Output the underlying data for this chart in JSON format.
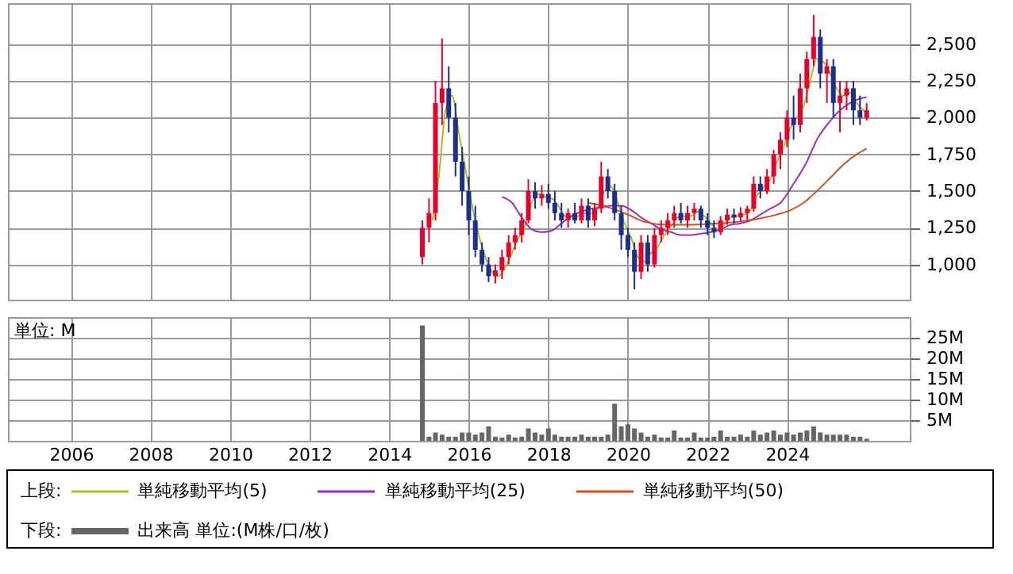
{
  "chart_data": [
    {
      "type": "candlestick",
      "legend_title": "上段:",
      "legend": "bottom",
      "grid": true,
      "tick_labels": "y",
      "xlim": [
        "2004-06",
        "2027-02"
      ],
      "xticks": [
        {
          "value": "2006",
          "label": null
        },
        {
          "value": "2008",
          "label": null
        },
        {
          "value": "2010",
          "label": null
        },
        {
          "value": "2012",
          "label": null
        },
        {
          "value": "2014",
          "label": null
        },
        {
          "value": "2016",
          "label": null
        },
        {
          "value": "2018",
          "label": null
        },
        {
          "value": "2020",
          "label": null
        },
        {
          "value": "2022",
          "label": null
        },
        {
          "value": "2024",
          "label": null
        }
      ],
      "ylim": [
        760,
        2780
      ],
      "yticks": [
        {
          "value": 1000,
          "label": "1,000"
        },
        {
          "value": 1250,
          "label": "1,250"
        },
        {
          "value": 1500,
          "label": "1,500"
        },
        {
          "value": 1750,
          "label": "1,750"
        },
        {
          "value": 2000,
          "label": "2,000"
        },
        {
          "value": 2250,
          "label": "2,250"
        },
        {
          "value": 2500,
          "label": "2,500"
        }
      ],
      "x": [
        "2014-11",
        "2015-01",
        "2015-03",
        "2015-05",
        "2015-07",
        "2015-09",
        "2015-11",
        "2016-01",
        "2016-03",
        "2016-05",
        "2016-07",
        "2016-09",
        "2016-11",
        "2017-01",
        "2017-03",
        "2017-05",
        "2017-07",
        "2017-09",
        "2017-11",
        "2018-01",
        "2018-03",
        "2018-05",
        "2018-07",
        "2018-09",
        "2018-11",
        "2019-01",
        "2019-03",
        "2019-05",
        "2019-07",
        "2019-09",
        "2019-11",
        "2020-01",
        "2020-03",
        "2020-05",
        "2020-07",
        "2020-09",
        "2020-11",
        "2021-01",
        "2021-03",
        "2021-05",
        "2021-07",
        "2021-09",
        "2021-11",
        "2022-01",
        "2022-03",
        "2022-05",
        "2022-07",
        "2022-09",
        "2022-11",
        "2023-01",
        "2023-03",
        "2023-05",
        "2023-07",
        "2023-09",
        "2023-11",
        "2024-01",
        "2024-03",
        "2024-05",
        "2024-07",
        "2024-09",
        "2024-11",
        "2025-01",
        "2025-03",
        "2025-05",
        "2025-07",
        "2025-09",
        "2025-11",
        "2026-01"
      ],
      "ohlc": [
        [
          1050,
          1300,
          1000,
          1250
        ],
        [
          1250,
          1450,
          1150,
          1350
        ],
        [
          1350,
          2250,
          1300,
          2100
        ],
        [
          2100,
          2540,
          1950,
          2200
        ],
        [
          2200,
          2350,
          1900,
          2000
        ],
        [
          2000,
          2100,
          1600,
          1700
        ],
        [
          1700,
          1800,
          1400,
          1500
        ],
        [
          1500,
          1600,
          1200,
          1300
        ],
        [
          1300,
          1400,
          1050,
          1100
        ],
        [
          1100,
          1150,
          950,
          1000
        ],
        [
          1000,
          1050,
          880,
          920
        ],
        [
          920,
          1000,
          870,
          960
        ],
        [
          960,
          1100,
          900,
          1050
        ],
        [
          1050,
          1200,
          1000,
          1150
        ],
        [
          1150,
          1250,
          1100,
          1200
        ],
        [
          1200,
          1350,
          1150,
          1300
        ],
        [
          1300,
          1580,
          1280,
          1500
        ],
        [
          1500,
          1560,
          1380,
          1450
        ],
        [
          1450,
          1540,
          1400,
          1480
        ],
        [
          1480,
          1550,
          1380,
          1420
        ],
        [
          1420,
          1500,
          1300,
          1350
        ],
        [
          1350,
          1420,
          1250,
          1300
        ],
        [
          1300,
          1380,
          1250,
          1350
        ],
        [
          1350,
          1420,
          1280,
          1300
        ],
        [
          1300,
          1450,
          1280,
          1400
        ],
        [
          1400,
          1450,
          1250,
          1300
        ],
        [
          1300,
          1420,
          1260,
          1380
        ],
        [
          1380,
          1700,
          1350,
          1600
        ],
        [
          1600,
          1650,
          1450,
          1500
        ],
        [
          1500,
          1550,
          1300,
          1350
        ],
        [
          1350,
          1400,
          1100,
          1200
        ],
        [
          1200,
          1250,
          1050,
          1100
        ],
        [
          1100,
          1150,
          830,
          950
        ],
        [
          950,
          1200,
          900,
          1150
        ],
        [
          1150,
          1200,
          950,
          1000
        ],
        [
          1000,
          1250,
          980,
          1200
        ],
        [
          1200,
          1300,
          1150,
          1250
        ],
        [
          1250,
          1350,
          1200,
          1300
        ],
        [
          1300,
          1400,
          1250,
          1350
        ],
        [
          1350,
          1420,
          1280,
          1300
        ],
        [
          1300,
          1400,
          1250,
          1350
        ],
        [
          1350,
          1420,
          1300,
          1380
        ],
        [
          1380,
          1400,
          1250,
          1300
        ],
        [
          1300,
          1350,
          1200,
          1250
        ],
        [
          1250,
          1300,
          1180,
          1220
        ],
        [
          1220,
          1330,
          1200,
          1300
        ],
        [
          1300,
          1380,
          1270,
          1340
        ],
        [
          1340,
          1380,
          1280,
          1320
        ],
        [
          1320,
          1390,
          1290,
          1350
        ],
        [
          1350,
          1400,
          1300,
          1380
        ],
        [
          1380,
          1600,
          1360,
          1550
        ],
        [
          1550,
          1600,
          1450,
          1500
        ],
        [
          1500,
          1650,
          1480,
          1600
        ],
        [
          1600,
          1780,
          1550,
          1750
        ],
        [
          1750,
          1900,
          1650,
          1850
        ],
        [
          1850,
          2050,
          1800,
          2000
        ],
        [
          2000,
          2150,
          1850,
          1950
        ],
        [
          1950,
          2300,
          1900,
          2200
        ],
        [
          2200,
          2450,
          2100,
          2400
        ],
        [
          2400,
          2700,
          2350,
          2550
        ],
        [
          2550,
          2600,
          2200,
          2300
        ],
        [
          2300,
          2400,
          2100,
          2350
        ],
        [
          2350,
          2400,
          2000,
          2100
        ],
        [
          2100,
          2250,
          1900,
          2150
        ],
        [
          2150,
          2250,
          2050,
          2200
        ],
        [
          2200,
          2250,
          1950,
          2050
        ],
        [
          2050,
          2150,
          1950,
          2000
        ],
        [
          2000,
          2100,
          1980,
          2050
        ]
      ],
      "colors": [
        "#e8002d",
        "#e8002d",
        "#e8002d",
        "#e8002d",
        "#1c2f8c",
        "#1c2f8c",
        "#1c2f8c",
        "#1c2f8c",
        "#1c2f8c",
        "#1c2f8c",
        "#1c2f8c",
        "#e8002d",
        "#e8002d",
        "#e8002d",
        "#e8002d",
        "#e8002d",
        "#e8002d",
        "#1c2f8c",
        "#e8002d",
        "#1c2f8c",
        "#1c2f8c",
        "#1c2f8c",
        "#e8002d",
        "#1c2f8c",
        "#e8002d",
        "#1c2f8c",
        "#e8002d",
        "#e8002d",
        "#1c2f8c",
        "#1c2f8c",
        "#1c2f8c",
        "#1c2f8c",
        "#1c2f8c",
        "#e8002d",
        "#1c2f8c",
        "#e8002d",
        "#e8002d",
        "#e8002d",
        "#e8002d",
        "#1c2f8c",
        "#e8002d",
        "#e8002d",
        "#1c2f8c",
        "#1c2f8c",
        "#1c2f8c",
        "#e8002d",
        "#e8002d",
        "#1c2f8c",
        "#e8002d",
        "#e8002d",
        "#e8002d",
        "#1c2f8c",
        "#e8002d",
        "#e8002d",
        "#e8002d",
        "#e8002d",
        "#1c2f8c",
        "#e8002d",
        "#e8002d",
        "#e8002d",
        "#1c2f8c",
        "#e8002d",
        "#1c2f8c",
        "#e8002d",
        "#e8002d",
        "#1c2f8c",
        "#1c2f8c",
        "#e8002d"
      ],
      "series": [
        {
          "type": "line",
          "name": "単純移動平均(5)",
          "color": "#a8c020",
          "x": [
            "2015-02",
            "2015-04",
            "2015-06",
            "2015-08",
            "2015-10",
            "2015-12",
            "2016-02",
            "2016-04",
            "2016-06",
            "2016-08",
            "2016-10",
            "2016-12",
            "2017-02",
            "2017-04",
            "2017-06",
            "2017-08",
            "2017-10",
            "2017-12",
            "2018-02",
            "2018-04",
            "2018-06",
            "2018-08",
            "2018-10",
            "2018-12",
            "2019-02",
            "2019-04",
            "2019-06",
            "2019-08",
            "2019-10",
            "2019-12",
            "2020-02",
            "2020-04",
            "2020-06",
            "2020-08",
            "2020-10",
            "2020-12",
            "2021-02",
            "2021-04",
            "2021-06",
            "2021-08",
            "2021-10",
            "2021-12",
            "2022-02",
            "2022-04",
            "2022-06",
            "2022-08",
            "2022-10",
            "2022-12",
            "2023-02",
            "2023-04",
            "2023-06",
            "2023-08",
            "2023-10",
            "2023-12",
            "2024-02",
            "2024-04",
            "2024-06",
            "2024-08",
            "2024-10",
            "2024-12",
            "2025-02",
            "2025-04",
            "2025-06",
            "2025-08",
            "2025-10",
            "2026-01"
          ],
          "values": [
            1300,
            1600,
            2050,
            2150,
            1900,
            1650,
            1400,
            1200,
            1050,
            950,
            920,
            980,
            1080,
            1180,
            1260,
            1420,
            1480,
            1460,
            1450,
            1400,
            1330,
            1320,
            1330,
            1350,
            1350,
            1380,
            1500,
            1530,
            1420,
            1280,
            1180,
            1050,
            1020,
            1080,
            1120,
            1200,
            1260,
            1320,
            1330,
            1330,
            1360,
            1330,
            1280,
            1240,
            1270,
            1320,
            1330,
            1340,
            1370,
            1470,
            1530,
            1580,
            1700,
            1800,
            1930,
            2000,
            2080,
            2250,
            2400,
            2380,
            2300,
            2200,
            2150,
            2170,
            2100,
            2030
          ]
        },
        {
          "type": "line",
          "name": "単純移動平均(25)",
          "color": "#9a30c0",
          "x": [
            "2016-11",
            "2017-02",
            "2017-05",
            "2017-08",
            "2017-11",
            "2018-02",
            "2018-05",
            "2018-08",
            "2018-11",
            "2019-02",
            "2019-05",
            "2019-08",
            "2019-11",
            "2020-02",
            "2020-05",
            "2020-08",
            "2020-11",
            "2021-02",
            "2021-05",
            "2021-08",
            "2021-11",
            "2022-02",
            "2022-05",
            "2022-08",
            "2022-11",
            "2023-02",
            "2023-05",
            "2023-08",
            "2023-11",
            "2024-03",
            "2024-07",
            "2024-10",
            "2025-01",
            "2025-05",
            "2025-08",
            "2025-11",
            "2026-01"
          ],
          "values": [
            1460,
            1420,
            1320,
            1240,
            1220,
            1230,
            1280,
            1330,
            1360,
            1380,
            1390,
            1400,
            1400,
            1370,
            1320,
            1280,
            1240,
            1220,
            1200,
            1200,
            1210,
            1220,
            1240,
            1270,
            1280,
            1300,
            1340,
            1380,
            1420,
            1550,
            1700,
            1850,
            1950,
            2050,
            2100,
            2130,
            2140
          ]
        },
        {
          "type": "line",
          "name": "単純移動平均(50)",
          "color": "#d05020",
          "x": [
            "2019-01",
            "2019-07",
            "2020-01",
            "2020-06",
            "2021-01",
            "2021-07",
            "2022-04",
            "2022-10",
            "2023-04",
            "2023-10",
            "2024-02",
            "2024-06",
            "2024-10",
            "2025-02",
            "2025-06",
            "2025-10",
            "2026-01"
          ],
          "values": [
            1420,
            1390,
            1340,
            1290,
            1270,
            1270,
            1280,
            1290,
            1310,
            1340,
            1370,
            1420,
            1500,
            1590,
            1680,
            1750,
            1790
          ]
        }
      ]
    },
    {
      "type": "bar",
      "ylabel": "単位: M",
      "legend_title": "下段:",
      "legend": "bottom",
      "grid": true,
      "xlim": [
        "2004-06",
        "2027-02"
      ],
      "xticks": [
        {
          "value": "2006",
          "label": "2006"
        },
        {
          "value": "2008",
          "label": "2008"
        },
        {
          "value": "2010",
          "label": "2010"
        },
        {
          "value": "2012",
          "label": "2012"
        },
        {
          "value": "2014",
          "label": "2014"
        },
        {
          "value": "2016",
          "label": "2016"
        },
        {
          "value": "2018",
          "label": "2018"
        },
        {
          "value": "2020",
          "label": "2020"
        },
        {
          "value": "2022",
          "label": "2022"
        },
        {
          "value": "2024",
          "label": "2024"
        }
      ],
      "ylim": [
        0,
        30
      ],
      "yticks": [
        {
          "value": 5,
          "label": "5M"
        },
        {
          "value": 10,
          "label": "10M"
        },
        {
          "value": 15,
          "label": "15M"
        },
        {
          "value": 20,
          "label": "20M"
        },
        {
          "value": 25,
          "label": "25M"
        }
      ],
      "x": [
        "2014-11",
        "2015-01",
        "2015-03",
        "2015-05",
        "2015-07",
        "2015-09",
        "2015-11",
        "2016-01",
        "2016-03",
        "2016-05",
        "2016-07",
        "2016-09",
        "2016-11",
        "2017-01",
        "2017-03",
        "2017-05",
        "2017-07",
        "2017-09",
        "2017-11",
        "2018-01",
        "2018-03",
        "2018-05",
        "2018-07",
        "2018-09",
        "2018-11",
        "2019-01",
        "2019-03",
        "2019-05",
        "2019-07",
        "2019-09",
        "2019-11",
        "2020-01",
        "2020-03",
        "2020-05",
        "2020-07",
        "2020-09",
        "2020-11",
        "2021-01",
        "2021-03",
        "2021-05",
        "2021-07",
        "2021-09",
        "2021-11",
        "2022-01",
        "2022-03",
        "2022-05",
        "2022-07",
        "2022-09",
        "2022-11",
        "2023-01",
        "2023-03",
        "2023-05",
        "2023-07",
        "2023-09",
        "2023-11",
        "2024-01",
        "2024-03",
        "2024-05",
        "2024-07",
        "2024-09",
        "2024-11",
        "2025-01",
        "2025-03",
        "2025-05",
        "2025-07",
        "2025-09",
        "2025-11",
        "2026-01"
      ],
      "series": [
        {
          "name": "出来高 単位:(M株/口/枚)",
          "color": "#666666",
          "values": [
            28,
            1,
            2,
            1.5,
            1,
            1,
            2,
            2,
            1.5,
            2,
            3.5,
            1,
            0.8,
            1.5,
            0.8,
            1,
            3,
            2,
            1.5,
            3,
            1.5,
            1,
            1,
            1,
            1.5,
            1,
            1,
            1,
            1.5,
            9,
            3.5,
            4,
            3,
            2,
            1,
            1.5,
            0.8,
            0.8,
            2.5,
            0.8,
            0.8,
            2,
            0.8,
            0.8,
            1,
            2.5,
            1,
            1,
            1.5,
            1,
            2.5,
            1.5,
            2,
            2.5,
            1.5,
            2,
            1.5,
            2,
            2.5,
            3.5,
            2,
            1.5,
            1.5,
            1.5,
            1.5,
            1,
            1,
            0.5
          ]
        }
      ]
    }
  ]
}
